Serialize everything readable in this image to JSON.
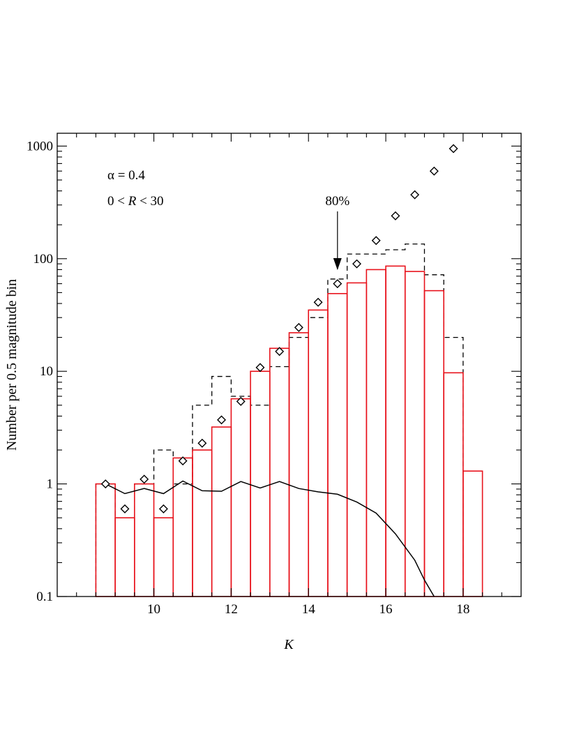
{
  "chart_data": {
    "type": "bar",
    "xlabel": "K",
    "ylabel": "Number per 0.5 magnitude bin",
    "xlim": [
      7.5,
      19.5
    ],
    "ylim": [
      0.1,
      1300
    ],
    "y_scale": "log",
    "x_ticks": [
      "10",
      "12",
      "14",
      "16",
      "18"
    ],
    "x_tick_values": [
      10,
      12,
      14,
      16,
      18
    ],
    "y_ticks": [
      "0.1",
      "1",
      "10",
      "100",
      "1000"
    ],
    "y_tick_values": [
      0.1,
      1,
      10,
      100,
      1000
    ],
    "annotations": {
      "alpha": "α = 0.4",
      "range_prefix": "0 < ",
      "range_var": "R",
      "range_suffix": " < 30",
      "completeness": "80%",
      "completeness_k": 14.75
    },
    "bin_width": 0.5,
    "series": [
      {
        "style": "red histogram",
        "color": "#e8131c",
        "bin_left_edges": [
          8.5,
          9.0,
          9.5,
          10.0,
          10.5,
          11.0,
          11.5,
          12.0,
          12.5,
          13.0,
          13.5,
          14.0,
          14.5,
          15.0,
          15.5,
          16.0,
          16.5,
          17.0,
          17.5,
          18.0
        ],
        "values": [
          1.0,
          0.5,
          1.0,
          0.5,
          1.7,
          2.0,
          3.2,
          5.7,
          10.0,
          16.0,
          22.0,
          35.0,
          49.0,
          61.0,
          80.0,
          86.0,
          77.0,
          52.0,
          9.7,
          1.3
        ]
      },
      {
        "style": "dashed histogram",
        "color": "#000000",
        "bin_left_edges": [
          8.5,
          9.0,
          9.5,
          10.0,
          10.5,
          11.0,
          11.5,
          12.0,
          12.5,
          13.0,
          13.5,
          14.0,
          14.5,
          15.0,
          15.5,
          16.0,
          16.5,
          17.0,
          17.5
        ],
        "values": [
          1.0,
          0.5,
          1.0,
          2.0,
          1.0,
          5.0,
          9.0,
          6.0,
          5.0,
          11.0,
          20.0,
          30.0,
          66.0,
          110.0,
          110.0,
          120.0,
          135.0,
          72.0,
          20.0
        ]
      },
      {
        "style": "diamond markers",
        "color": "#000000",
        "x": [
          8.75,
          9.25,
          9.75,
          10.25,
          10.75,
          11.25,
          11.75,
          12.25,
          12.75,
          13.25,
          13.75,
          14.25,
          14.75,
          15.25,
          15.75,
          16.25,
          16.75,
          17.25,
          17.75
        ],
        "values": [
          1.0,
          0.6,
          1.1,
          0.6,
          1.6,
          2.3,
          3.7,
          5.4,
          10.8,
          15.0,
          24.5,
          41.0,
          60.0,
          90.0,
          145.0,
          240.0,
          370.0,
          600.0,
          950.0
        ]
      },
      {
        "style": "solid line",
        "color": "#000000",
        "x": [
          8.75,
          9.25,
          9.75,
          10.25,
          10.75,
          11.25,
          11.75,
          12.25,
          12.75,
          13.25,
          13.75,
          14.25,
          14.75,
          15.25,
          15.75,
          16.25,
          16.75,
          17.0,
          17.25
        ],
        "values": [
          1.0,
          0.82,
          0.91,
          0.82,
          1.06,
          0.87,
          0.86,
          1.05,
          0.92,
          1.05,
          0.91,
          0.85,
          0.81,
          0.69,
          0.55,
          0.36,
          0.21,
          0.14,
          0.1
        ]
      }
    ]
  }
}
